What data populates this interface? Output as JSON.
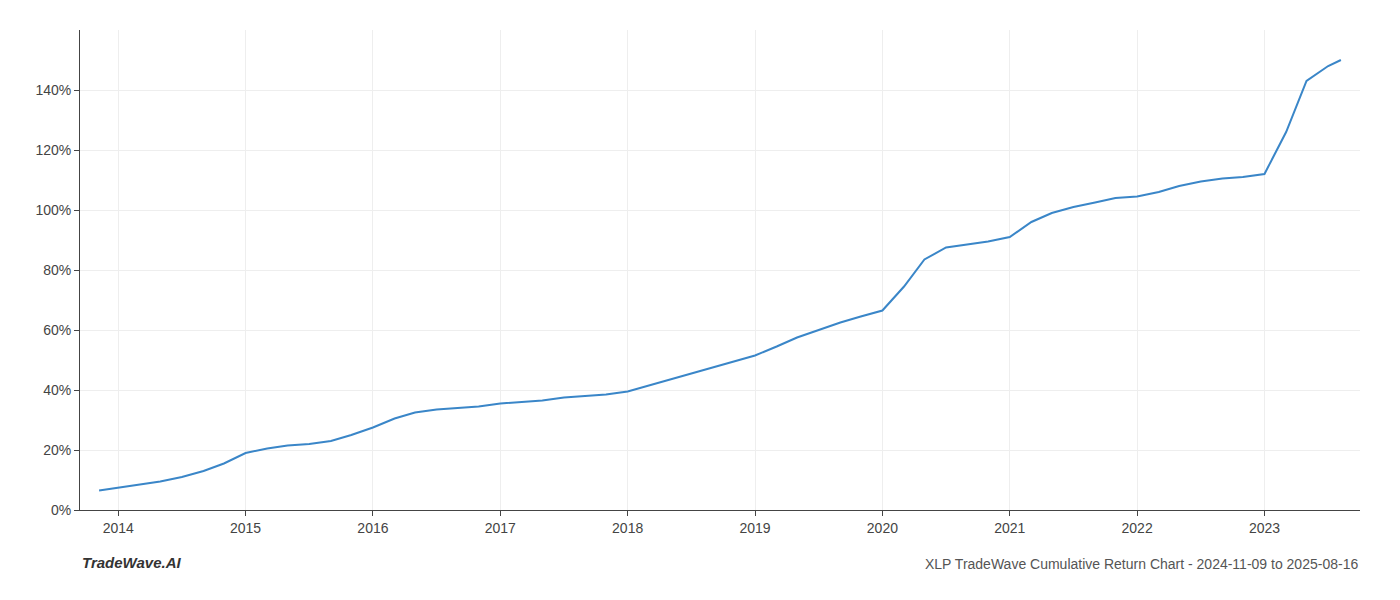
{
  "chart_data": {
    "type": "line",
    "title": "XLP TradeWave Cumulative Return Chart - 2024-11-09 to 2025-08-16",
    "annotations": [
      {
        "text": "TradeWave.AI"
      }
    ],
    "x": [
      2013.85,
      2014.0,
      2014.17,
      2014.33,
      2014.5,
      2014.67,
      2014.83,
      2015.0,
      2015.17,
      2015.33,
      2015.5,
      2015.67,
      2015.83,
      2016.0,
      2016.17,
      2016.33,
      2016.5,
      2016.67,
      2016.83,
      2017.0,
      2017.17,
      2017.33,
      2017.5,
      2017.67,
      2017.83,
      2018.0,
      2018.17,
      2018.33,
      2018.5,
      2018.67,
      2018.83,
      2019.0,
      2019.17,
      2019.33,
      2019.5,
      2019.67,
      2019.83,
      2020.0,
      2020.17,
      2020.33,
      2020.5,
      2020.67,
      2020.83,
      2021.0,
      2021.17,
      2021.33,
      2021.5,
      2021.67,
      2021.83,
      2022.0,
      2022.17,
      2022.33,
      2022.5,
      2022.67,
      2022.83,
      2023.0,
      2023.17,
      2023.33,
      2023.5,
      2023.6
    ],
    "values": [
      0.065,
      0.075,
      0.085,
      0.095,
      0.11,
      0.13,
      0.155,
      0.19,
      0.205,
      0.215,
      0.22,
      0.23,
      0.25,
      0.275,
      0.305,
      0.325,
      0.335,
      0.34,
      0.345,
      0.355,
      0.36,
      0.365,
      0.375,
      0.38,
      0.385,
      0.395,
      0.415,
      0.435,
      0.455,
      0.475,
      0.495,
      0.515,
      0.545,
      0.575,
      0.6,
      0.625,
      0.645,
      0.665,
      0.745,
      0.835,
      0.875,
      0.885,
      0.895,
      0.91,
      0.96,
      0.99,
      1.01,
      1.025,
      1.04,
      1.045,
      1.06,
      1.08,
      1.095,
      1.105,
      1.11,
      1.12,
      1.26,
      1.43,
      1.48,
      1.5
    ],
    "color": "#3a86c8",
    "xlim": [
      2013.7,
      2023.75
    ],
    "ylim": [
      0.0,
      1.6
    ],
    "xticks": [
      2014,
      2015,
      2016,
      2017,
      2018,
      2019,
      2020,
      2021,
      2022,
      2023
    ],
    "yticks": [
      {
        "value": 0.0,
        "label": "0%"
      },
      {
        "value": 0.2,
        "label": "20%"
      },
      {
        "value": 0.4,
        "label": "40%"
      },
      {
        "value": 0.6,
        "label": "60%"
      },
      {
        "value": 0.8,
        "label": "80%"
      },
      {
        "value": 1.0,
        "label": "100%"
      },
      {
        "value": 1.2,
        "label": "120%"
      },
      {
        "value": 1.4,
        "label": "140%"
      }
    ],
    "grid": true
  }
}
